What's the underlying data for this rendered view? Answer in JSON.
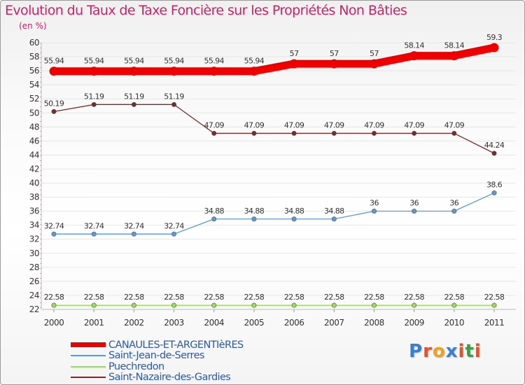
{
  "chart_data": {
    "type": "line",
    "title": "Evolution du Taux de Taxe Foncière sur les Propriétés Non Bâties",
    "ylabel": "(en %)",
    "xlabel": "",
    "ylim": [
      22,
      60
    ],
    "yticks": [
      22,
      24,
      26,
      28,
      30,
      32,
      34,
      36,
      38,
      40,
      42,
      44,
      46,
      48,
      50,
      52,
      54,
      56,
      58,
      60
    ],
    "x": [
      "2000",
      "2001",
      "2002",
      "2003",
      "2004",
      "2005",
      "2006",
      "2007",
      "2008",
      "2009",
      "2010",
      "2011"
    ],
    "series": [
      {
        "name": "CANAULES-ET-ARGENTIèRES",
        "color": "#ee0000",
        "values": [
          55.94,
          55.94,
          55.94,
          55.94,
          55.94,
          55.94,
          57,
          57,
          57,
          58.14,
          58.14,
          59.3
        ],
        "labels": [
          "55.94",
          "55.94",
          "55.94",
          "55.94",
          "55.94",
          "55.94",
          "57",
          "57",
          "57",
          "58.14",
          "58.14",
          "59.3"
        ]
      },
      {
        "name": "Saint-Jean-de-Serres",
        "color": "#5b9bd5",
        "values": [
          32.74,
          32.74,
          32.74,
          32.74,
          34.88,
          34.88,
          34.88,
          34.88,
          36,
          36,
          36,
          38.6
        ],
        "labels": [
          "32.74",
          "32.74",
          "32.74",
          "32.74",
          "34.88",
          "34.88",
          "34.88",
          "34.88",
          "36",
          "36",
          "36",
          "38.6"
        ]
      },
      {
        "name": "Puechredon",
        "color": "#99dd55",
        "values": [
          22.58,
          22.58,
          22.58,
          22.58,
          22.58,
          22.58,
          22.58,
          22.58,
          22.58,
          22.58,
          22.58,
          22.58
        ],
        "labels": [
          "22.58",
          "22.58",
          "22.58",
          "22.58",
          "22.58",
          "22.58",
          "22.58",
          "22.58",
          "22.58",
          "22.58",
          "22.58",
          "22.58"
        ]
      },
      {
        "name": "Saint-Nazaire-des-Gardies",
        "color": "#7a2a2a",
        "values": [
          50.19,
          51.19,
          51.19,
          51.19,
          47.09,
          47.09,
          47.09,
          47.09,
          47.09,
          47.09,
          47.09,
          44.24
        ],
        "labels": [
          "50.19",
          "51.19",
          "51.19",
          "51.19",
          "47.09",
          "47.09",
          "47.09",
          "47.09",
          "47.09",
          "47.09",
          "47.09",
          "44.24"
        ]
      }
    ]
  },
  "legend": {
    "items": [
      {
        "label": "CANAULES-ET-ARGENTIèRES",
        "color": "#ee0000"
      },
      {
        "label": "Saint-Jean-de-Serres",
        "color": "#5b9bd5"
      },
      {
        "label": "Puechredon",
        "color": "#99dd55"
      },
      {
        "label": "Saint-Nazaire-des-Gardies",
        "color": "#7a2a2a"
      }
    ]
  },
  "logo": {
    "text": "Proxiti",
    "colors": [
      "#3a7fd0",
      "#e0532b",
      "#f0a020",
      "#3a7fd0",
      "#e0532b",
      "#3aa048",
      "#e0532b"
    ]
  }
}
